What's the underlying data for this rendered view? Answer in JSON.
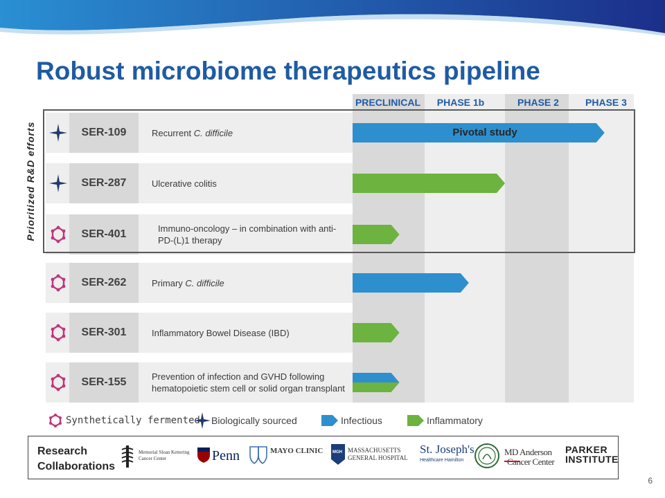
{
  "title": "Robust microbiome therapeutics pipeline",
  "page_number": "6",
  "prioritized_label": "Prioritized R&D efforts",
  "chart_data": {
    "type": "bar",
    "orientation": "horizontal",
    "phases": [
      "PRECLINICAL",
      "PHASE 1b",
      "PHASE 2",
      "PHASE 3"
    ],
    "programs": [
      {
        "code": "SER-109",
        "indication": "Recurrent ",
        "indication_italic": "C. difficile",
        "source": "biologically-sourced",
        "series": [
          {
            "name": "Infectious",
            "end_phase": 3.55
          }
        ],
        "bar_label": "Pivotal study",
        "prioritized": true
      },
      {
        "code": "SER-287",
        "indication": "Ulcerative colitis",
        "indication_italic": "",
        "source": "biologically-sourced",
        "series": [
          {
            "name": "Inflammatory",
            "end_phase": 2.0
          }
        ],
        "bar_label": "",
        "prioritized": true
      },
      {
        "code": "SER-401",
        "indication": "Immuno-oncology – in combination with anti-PD-(L)1 therapy",
        "indication_italic": "",
        "source": "synthetically-fermented",
        "series": [
          {
            "name": "Inflammatory",
            "end_phase": 0.65
          }
        ],
        "bar_label": "",
        "prioritized": true
      },
      {
        "code": "SER-262",
        "indication": "Primary ",
        "indication_italic": "C. difficile",
        "source": "synthetically-fermented",
        "series": [
          {
            "name": "Infectious",
            "end_phase": 1.55
          }
        ],
        "bar_label": "",
        "prioritized": false
      },
      {
        "code": "SER-301",
        "indication": "Inflammatory Bowel Disease (IBD)",
        "indication_italic": "",
        "source": "synthetically-fermented",
        "series": [
          {
            "name": "Inflammatory",
            "end_phase": 0.65
          }
        ],
        "bar_label": "",
        "prioritized": false
      },
      {
        "code": "SER-155",
        "indication": "Prevention of infection and GVHD following hematopoietic stem cell or solid organ transplant",
        "indication_italic": "",
        "source": "synthetically-fermented",
        "series": [
          {
            "name": "Infectious",
            "end_phase": 0.65
          },
          {
            "name": "Inflammatory",
            "end_phase": 0.65
          }
        ],
        "bar_label": "",
        "prioritized": false
      }
    ],
    "legend": [
      {
        "label": "Synthetically fermented",
        "icon": "synthetic-ring-icon"
      },
      {
        "label": "Biologically sourced",
        "icon": "four-point-star-icon"
      },
      {
        "label": "Infectious",
        "color": "#2e8fce"
      },
      {
        "label": "Inflammatory",
        "color": "#6cb33f"
      }
    ],
    "colors": {
      "Infectious": "#2e8fce",
      "Inflammatory": "#6cb33f",
      "title": "#1f5ba3"
    }
  },
  "collaborations": {
    "label": "Research Collaborations",
    "logos": [
      {
        "name": "msk",
        "text": "Memorial Sloan Kettering Cancer Center"
      },
      {
        "name": "penn",
        "text": "Penn"
      },
      {
        "name": "mayo",
        "text": "MAYO CLINIC"
      },
      {
        "name": "mgh",
        "text": "MASSACHUSETTS GENERAL HOSPITAL",
        "badge": "MGH"
      },
      {
        "name": "st-josephs",
        "text": "St. Joseph's",
        "sub": "Healthcare Hamilton"
      },
      {
        "name": "md-anderson",
        "text": "MD Anderson",
        "sub": "Cancer Center"
      },
      {
        "name": "parker",
        "text": "PARKER",
        "sub": "INSTITUTE"
      }
    ]
  }
}
